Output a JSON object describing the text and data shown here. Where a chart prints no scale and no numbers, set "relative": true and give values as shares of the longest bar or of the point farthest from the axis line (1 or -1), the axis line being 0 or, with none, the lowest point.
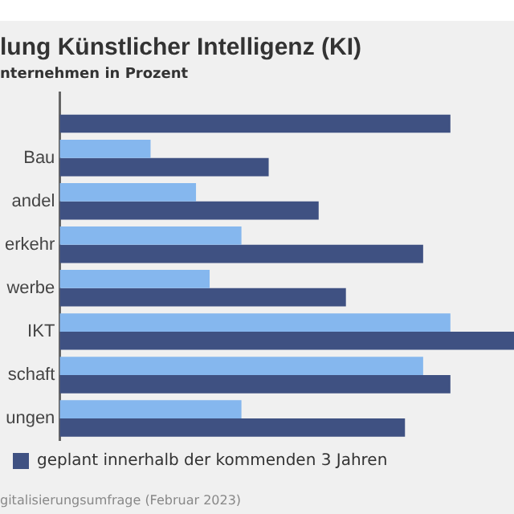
{
  "chart_data": {
    "type": "bar",
    "orientation": "horizontal",
    "relative": true,
    "title": "lung Künstlicher Intelligenz (KI)",
    "subtitle": "nternehmen in Prozent",
    "annotations": [
      "gitalisierungsumfrage (Februar 2023)"
    ],
    "legend": "bottom left",
    "categories": [
      null,
      "Bau",
      "andel",
      "erkehr",
      "werbe",
      "IKT",
      "schaft",
      "ungen"
    ],
    "series": [
      {
        "color": "#85b7ee",
        "values": [
          null,
          0.2,
          0.3,
          0.4,
          0.33,
          0.86,
          0.8,
          0.4
        ]
      },
      {
        "name": "geplant innerhalb der kommenden 3 Jahren",
        "color": "#3f5182",
        "values": [
          0.86,
          0.46,
          0.57,
          0.8,
          0.63,
          1,
          0.86,
          0.76
        ]
      }
    ]
  }
}
